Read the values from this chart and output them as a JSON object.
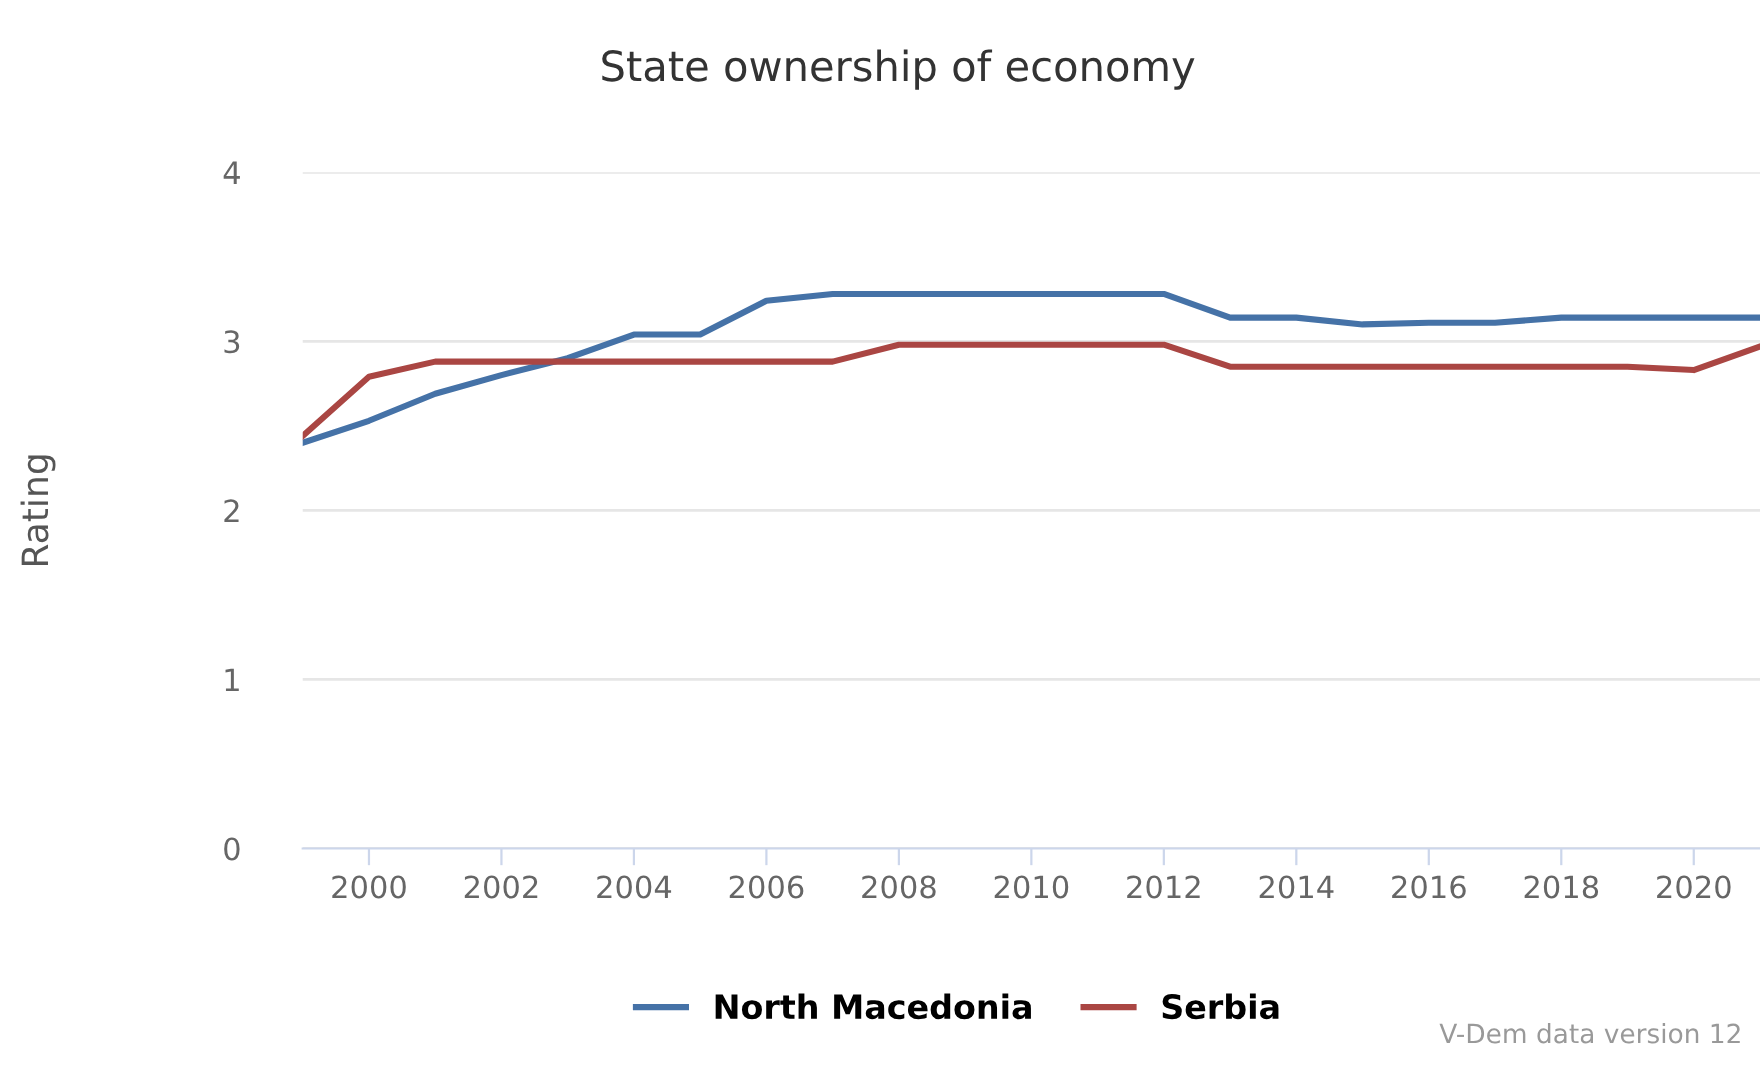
{
  "chart_data": {
    "type": "line",
    "title": "State ownership of economy",
    "ylabel": "Rating",
    "x": [
      1999,
      2000,
      2001,
      2002,
      2003,
      2004,
      2005,
      2006,
      2007,
      2008,
      2009,
      2010,
      2011,
      2012,
      2013,
      2014,
      2015,
      2016,
      2017,
      2018,
      2019,
      2020,
      2021
    ],
    "series": [
      {
        "name": "North Macedonia",
        "color": "#4572a7",
        "values": [
          2.4,
          2.53,
          2.69,
          2.8,
          2.9,
          3.04,
          3.04,
          3.24,
          3.28,
          3.28,
          3.28,
          3.28,
          3.28,
          3.28,
          3.14,
          3.14,
          3.1,
          3.11,
          3.11,
          3.14,
          3.14,
          3.14,
          3.14
        ]
      },
      {
        "name": "Serbia",
        "color": "#aa4643",
        "values": [
          2.44,
          2.79,
          2.88,
          2.88,
          2.88,
          2.88,
          2.88,
          2.88,
          2.88,
          2.98,
          2.98,
          2.98,
          2.98,
          2.98,
          2.85,
          2.85,
          2.85,
          2.85,
          2.85,
          2.85,
          2.85,
          2.83,
          2.97
        ]
      }
    ],
    "xlim": [
      1999,
      2021
    ],
    "xticks": [
      2000,
      2002,
      2004,
      2006,
      2008,
      2010,
      2012,
      2014,
      2016,
      2018,
      2020
    ],
    "ylim": [
      0,
      4
    ],
    "yticks": [
      0,
      1,
      2,
      3,
      4
    ],
    "grid": "y",
    "legend": "bottom",
    "marker": "none",
    "line_style": "solid",
    "annotations": [
      "V-Dem data version 12"
    ]
  }
}
